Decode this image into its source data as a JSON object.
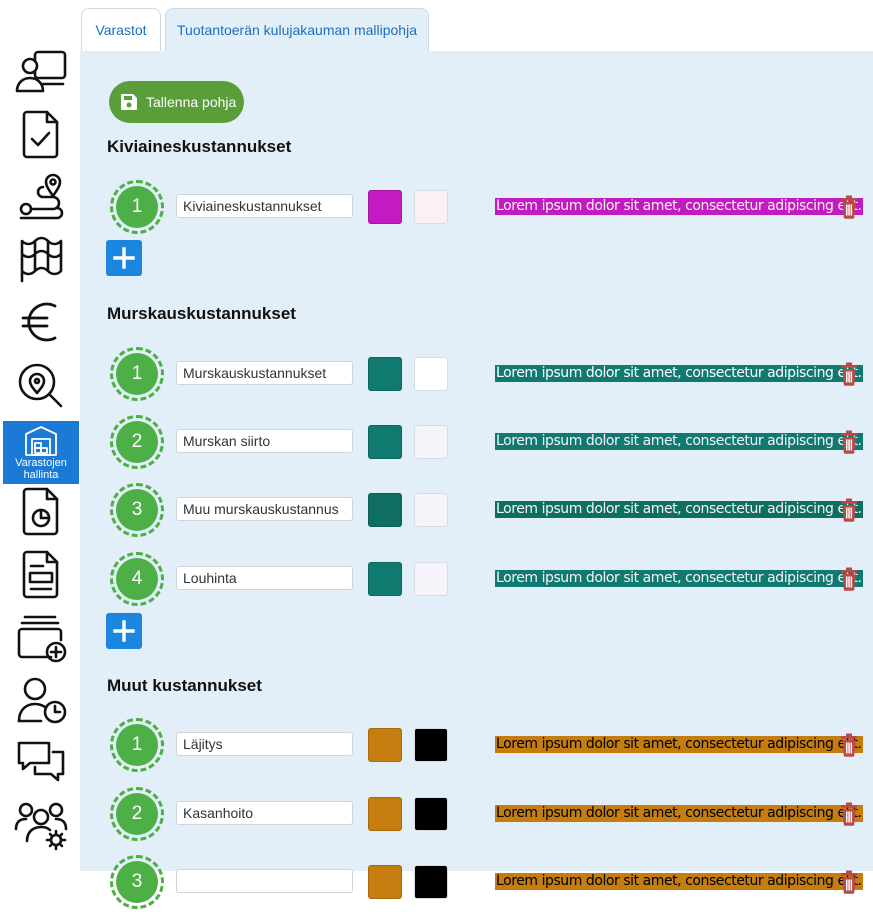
{
  "sidebar": {
    "items": [
      {
        "icon": "user-desk-icon"
      },
      {
        "icon": "document-check-icon"
      },
      {
        "icon": "route-icon"
      },
      {
        "icon": "map-icon"
      },
      {
        "icon": "euro-icon"
      },
      {
        "icon": "location-search-icon"
      },
      {
        "icon": "warehouse-icon",
        "label_1": "Varastojen",
        "label_2": "hallinta",
        "active": true
      },
      {
        "icon": "report-chart-icon"
      },
      {
        "icon": "document-form-icon"
      },
      {
        "icon": "add-stack-icon"
      },
      {
        "icon": "user-clock-icon"
      },
      {
        "icon": "chat-icon"
      },
      {
        "icon": "users-settings-icon"
      }
    ]
  },
  "tabs": [
    {
      "label": "Varastot"
    },
    {
      "label": "Tuotantoerän kulujakauman mallipohja",
      "active": true
    }
  ],
  "toolbar": {
    "save_label": "Tallenna pohja",
    "accent": "#5a9e3a"
  },
  "preview_text": "Lorem ipsum dolor sit amet, consectetur adipiscing elit.",
  "sections": [
    {
      "title": "Kiviaineskustannukset",
      "rows": [
        {
          "number": "1",
          "name": "Kiviaineskustannukset",
          "bg": "#c21bc2",
          "fg": "#fbf1f4"
        }
      ]
    },
    {
      "title": "Murskauskustannukset",
      "rows": [
        {
          "number": "1",
          "name": "Murskauskustannukset",
          "bg": "#117a70",
          "fg": "#ffffff"
        },
        {
          "number": "2",
          "name": "Murskan siirto",
          "bg": "#117a70",
          "fg": "#f6f3fa"
        },
        {
          "number": "3",
          "name": "Muu murskauskustannus",
          "bg": "#0e6f60",
          "fg": "#f6f3fa"
        },
        {
          "number": "4",
          "name": "Louhinta",
          "bg": "#117a70",
          "fg": "#f6f3fa"
        }
      ]
    },
    {
      "title": "Muut kustannukset",
      "rows": [
        {
          "number": "1",
          "name": "Läjitys",
          "bg": "#c47d0e",
          "fg": "#000000"
        },
        {
          "number": "2",
          "name": "Kasanhoito",
          "bg": "#c47d0e",
          "fg": "#000000"
        },
        {
          "number": "3",
          "name": "",
          "bg": "#c47d0e",
          "fg": "#000000"
        }
      ]
    }
  ]
}
